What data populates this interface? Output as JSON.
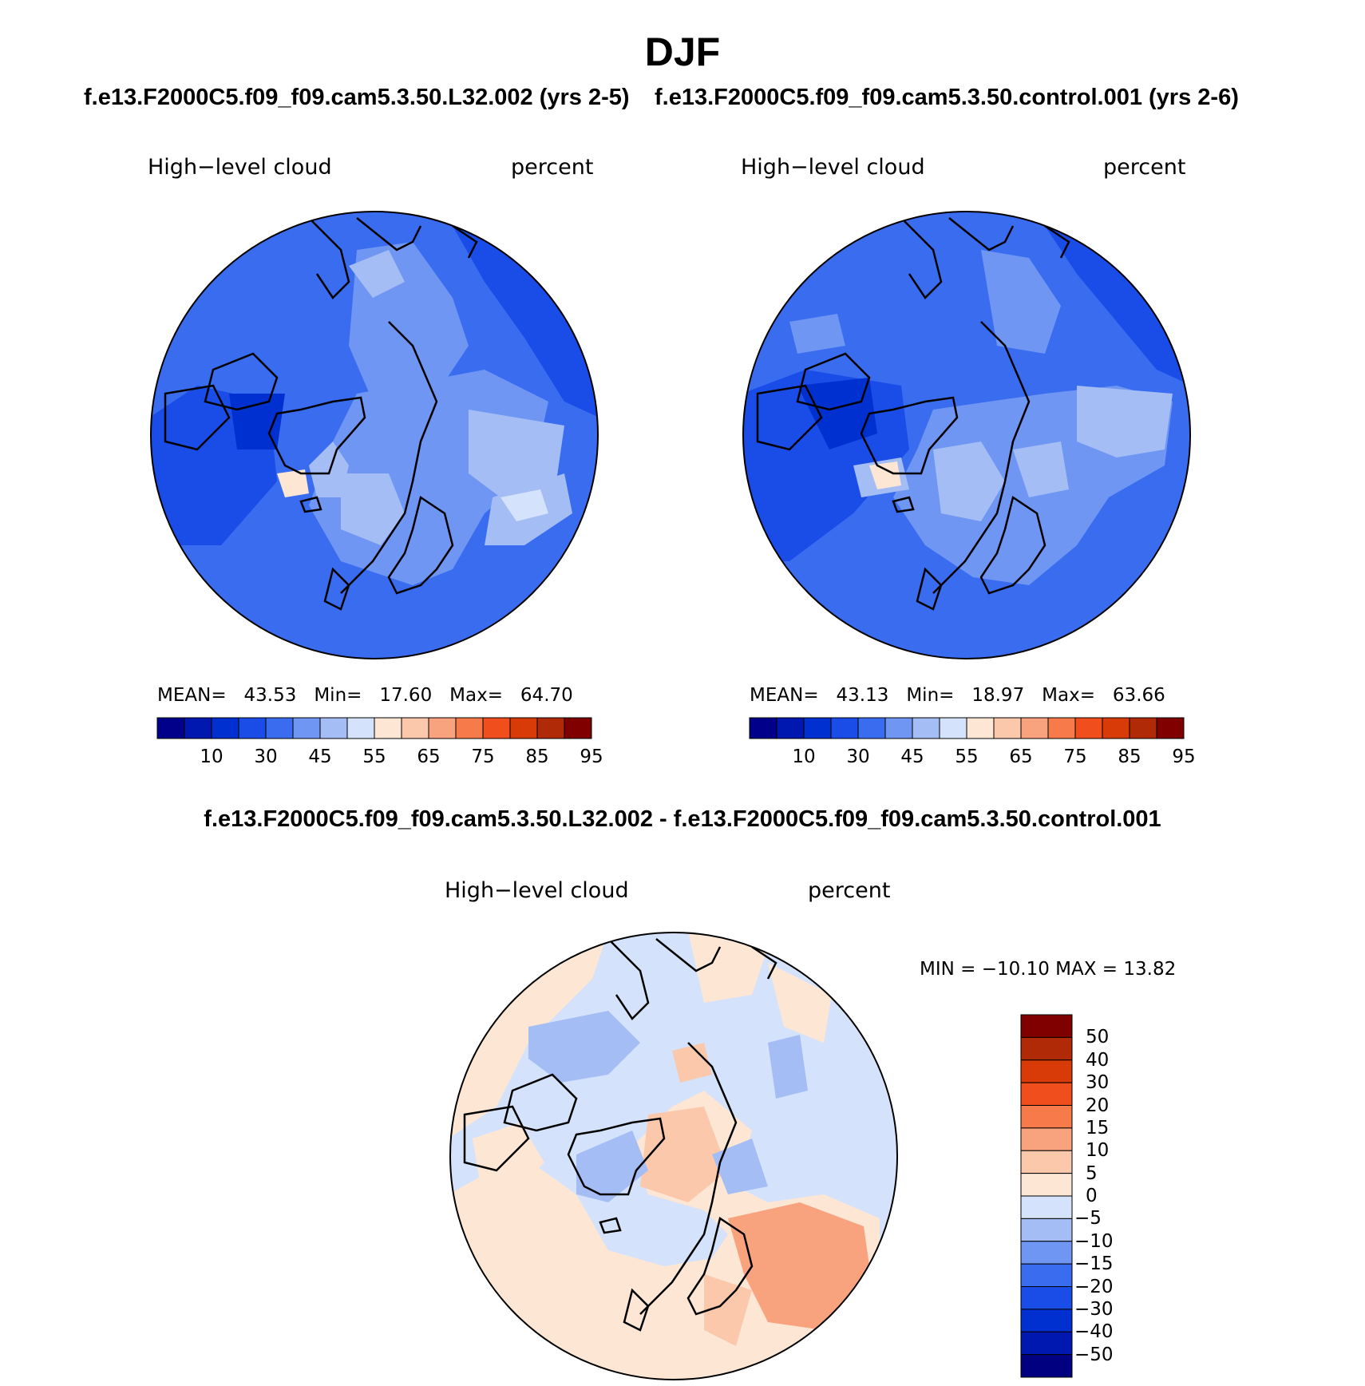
{
  "title": "DJF",
  "panels": [
    {
      "run_title": "f.e13.F2000C5.f09_f09.cam5.3.50.L32.002 (yrs 2-5)",
      "variable": "High−level cloud",
      "units": "percent",
      "stats": {
        "mean_label": "MEAN=",
        "mean": "43.53",
        "min_label": "Min=",
        "min": "17.60",
        "max_label": "Max=",
        "max": "64.70"
      },
      "colorbar_ticks": [
        "10",
        "30",
        "45",
        "55",
        "65",
        "75",
        "85",
        "95"
      ]
    },
    {
      "run_title": "f.e13.F2000C5.f09_f09.cam5.3.50.control.001 (yrs 2-6)",
      "variable": "High−level cloud",
      "units": "percent",
      "stats": {
        "mean_label": "MEAN=",
        "mean": "43.13",
        "min_label": "Min=",
        "min": "18.97",
        "max_label": "Max=",
        "max": "63.66"
      },
      "colorbar_ticks": [
        "10",
        "30",
        "45",
        "55",
        "65",
        "75",
        "85",
        "95"
      ]
    }
  ],
  "difference": {
    "title": "f.e13.F2000C5.f09_f09.cam5.3.50.L32.002 - f.e13.F2000C5.f09_f09.cam5.3.50.control.001",
    "variable": "High−level cloud",
    "units": "percent",
    "minmax": "MIN = −10.10 MAX =   13.82",
    "colorbar_ticks": [
      "50",
      "40",
      "30",
      "20",
      "15",
      "10",
      "5",
      "0",
      "−5",
      "−10",
      "−15",
      "−20",
      "−30",
      "−40",
      "−50"
    ]
  },
  "colors": {
    "abs_scale": [
      "#00008b",
      "#0018b0",
      "#0030d0",
      "#1a4de8",
      "#3a6cf0",
      "#6e96f2",
      "#a4bdf5",
      "#d4e3fb",
      "#fde6d4",
      "#fcc8ac",
      "#f9a27e",
      "#f77a4a",
      "#f04e1c",
      "#d83a08",
      "#b02a08",
      "#800000"
    ],
    "diff_scale": [
      "#000080",
      "#0018b0",
      "#0030d0",
      "#1a4de8",
      "#3a6cf0",
      "#6e96f2",
      "#a4bdf5",
      "#d4e3fb",
      "#fde6d4",
      "#fcc8ac",
      "#f9a27e",
      "#f77a4a",
      "#f04e1c",
      "#d83a08",
      "#b02a08",
      "#800000"
    ]
  },
  "map_features": [
    "coastline",
    "greenland",
    "iceland",
    "scandinavia",
    "alaska",
    "hudson-bay"
  ]
}
